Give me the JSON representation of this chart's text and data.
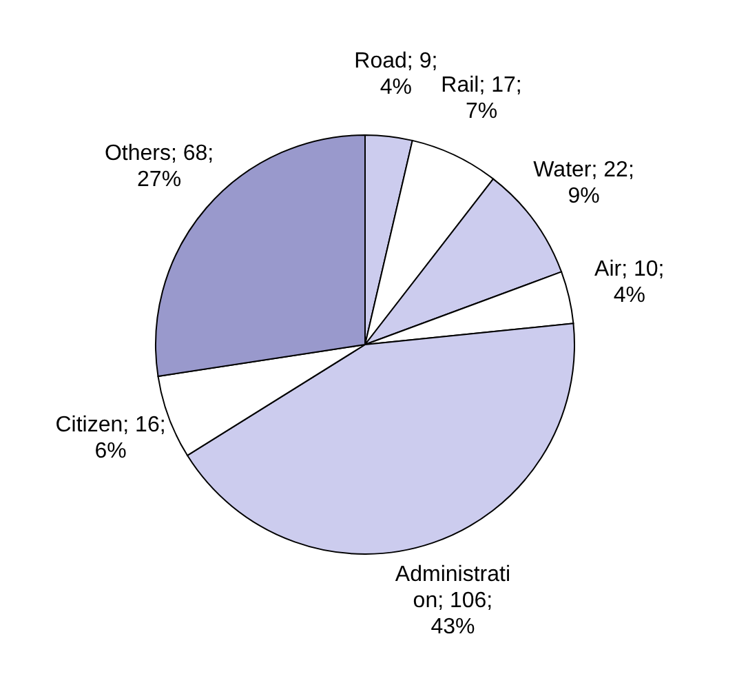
{
  "chart_data": {
    "type": "pie",
    "categories": [
      "Road",
      "Rail",
      "Water",
      "Air",
      "Administration",
      "Citizen",
      "Others"
    ],
    "values": [
      9,
      17,
      22,
      10,
      106,
      16,
      68
    ],
    "colors": [
      "#ccccee",
      "#ffffff",
      "#ccccee",
      "#ffffff",
      "#ccccee",
      "#ffffff",
      "#9999cc"
    ],
    "value_labels": [
      "9; 4%",
      "17; 7%",
      "22; 9%",
      "10; 4%",
      "106; 43%",
      "16; 6%",
      "68; 27%"
    ]
  }
}
